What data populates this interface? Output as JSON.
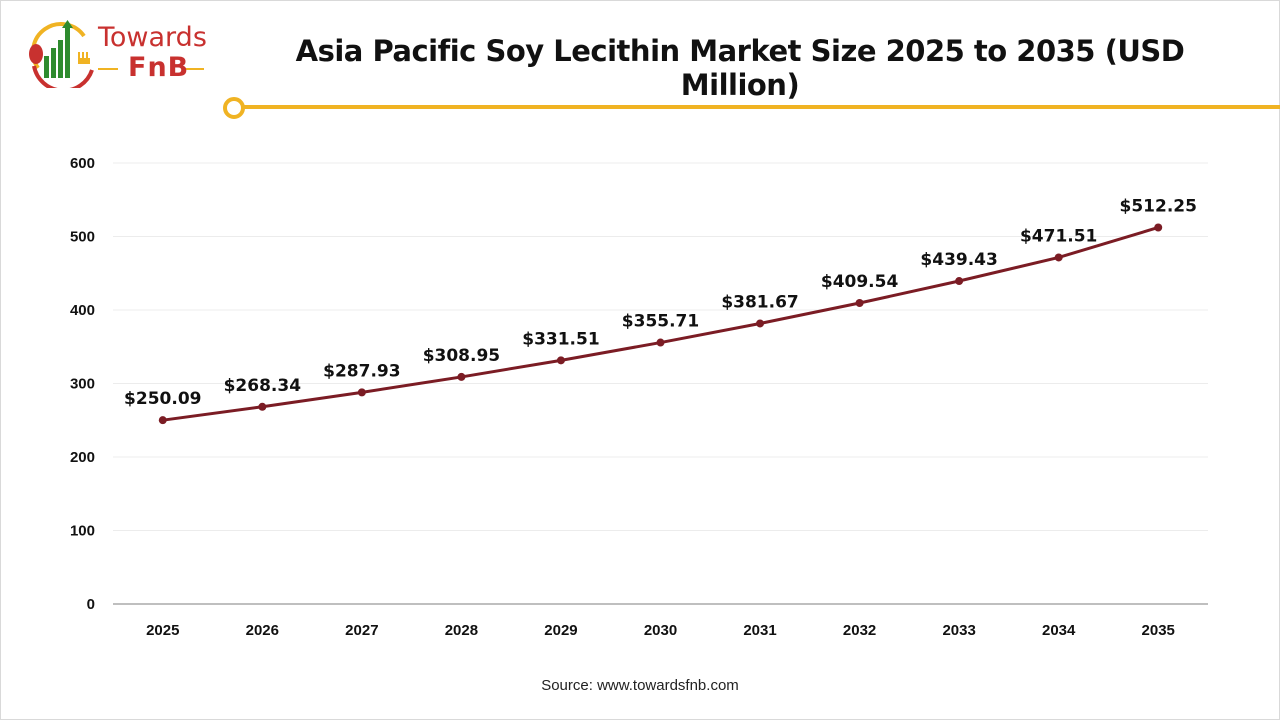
{
  "logo": {
    "line1": "Towards",
    "line2": "FnB"
  },
  "title": "Asia Pacific Soy Lecithin Market Size 2025 to 2035 (USD Million)",
  "source": "Source: www.towardsfnb.com",
  "colors": {
    "line": "#7b1c24",
    "accent": "#f0b323",
    "brand_red": "#c8312f",
    "brand_green": "#2e8b2e"
  },
  "chart_data": {
    "type": "line",
    "title": "Asia Pacific Soy Lecithin Market Size 2025 to 2035 (USD Million)",
    "xlabel": "",
    "ylabel": "",
    "categories": [
      "2025",
      "2026",
      "2027",
      "2028",
      "2029",
      "2030",
      "2031",
      "2032",
      "2033",
      "2034",
      "2035"
    ],
    "values": [
      250.09,
      268.34,
      287.93,
      308.95,
      331.51,
      355.71,
      381.67,
      409.54,
      439.43,
      471.51,
      512.25
    ],
    "data_labels": [
      "$250.09",
      "$268.34",
      "$287.93",
      "$308.95",
      "$331.51",
      "$355.71",
      "$381.67",
      "$409.54",
      "$439.43",
      "$471.51",
      "$512.25"
    ],
    "ylim": [
      0,
      600
    ],
    "yticks": [
      "0",
      "100",
      "200",
      "300",
      "400",
      "500",
      "600"
    ],
    "grid": true,
    "legend": "none"
  }
}
